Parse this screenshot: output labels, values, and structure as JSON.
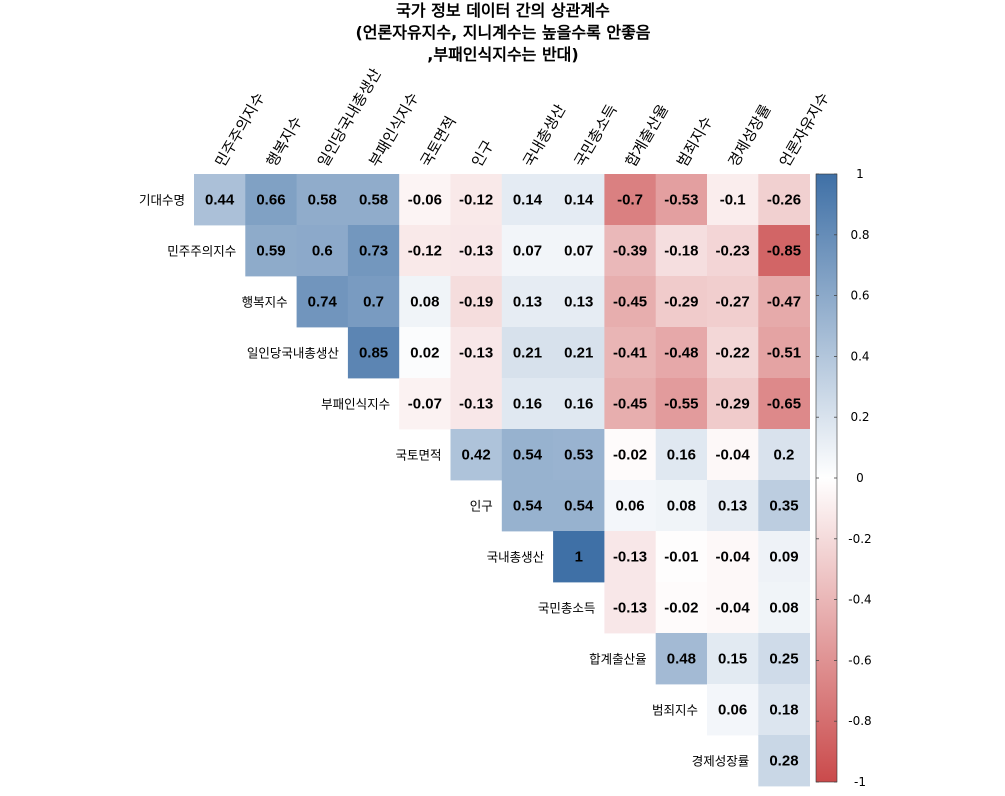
{
  "chart_data": {
    "type": "heatmap",
    "title_lines": [
      "국가 정보 데이터 간의 상관계수",
      "(언론자유지수, 지니계수는 높을수록 안좋음",
      ",부패인식지수는 반대)"
    ],
    "row_labels": [
      "기대수명",
      "민주주의지수",
      "행복지수",
      "일인당국내총생산",
      "부패인식지수",
      "국토면적",
      "인구",
      "국내총생산",
      "국민총소득",
      "합계출산율",
      "범죄지수",
      "경제성장률"
    ],
    "col_labels": [
      "민주주의지수",
      "행복지수",
      "일인당국내총생산",
      "부패인식지수",
      "국토면적",
      "인구",
      "국내총생산",
      "국민총소득",
      "합계출산율",
      "범죄지수",
      "경제성장률",
      "언론자유지수"
    ],
    "values": [
      [
        0.44,
        0.66,
        0.58,
        0.58,
        -0.06,
        -0.12,
        0.14,
        0.14,
        -0.7,
        -0.53,
        -0.1,
        -0.26
      ],
      [
        null,
        0.59,
        0.6,
        0.73,
        -0.12,
        -0.13,
        0.07,
        0.07,
        -0.39,
        -0.18,
        -0.23,
        -0.85
      ],
      [
        null,
        null,
        0.74,
        0.7,
        0.08,
        -0.19,
        0.13,
        0.13,
        -0.45,
        -0.29,
        -0.27,
        -0.47
      ],
      [
        null,
        null,
        null,
        0.85,
        0.02,
        -0.13,
        0.21,
        0.21,
        -0.41,
        -0.48,
        -0.22,
        -0.51
      ],
      [
        null,
        null,
        null,
        null,
        -0.07,
        -0.13,
        0.16,
        0.16,
        -0.45,
        -0.55,
        -0.29,
        -0.65
      ],
      [
        null,
        null,
        null,
        null,
        null,
        0.42,
        0.54,
        0.53,
        -0.02,
        0.16,
        -0.04,
        0.2
      ],
      [
        null,
        null,
        null,
        null,
        null,
        null,
        0.54,
        0.54,
        0.06,
        0.08,
        0.13,
        0.35
      ],
      [
        null,
        null,
        null,
        null,
        null,
        null,
        null,
        1,
        -0.13,
        -0.01,
        -0.04,
        0.09
      ],
      [
        null,
        null,
        null,
        null,
        null,
        null,
        null,
        null,
        -0.13,
        -0.02,
        -0.04,
        0.08
      ],
      [
        null,
        null,
        null,
        null,
        null,
        null,
        null,
        null,
        null,
        0.48,
        0.15,
        0.25
      ],
      [
        null,
        null,
        null,
        null,
        null,
        null,
        null,
        null,
        null,
        null,
        0.06,
        0.18
      ],
      [
        null,
        null,
        null,
        null,
        null,
        null,
        null,
        null,
        null,
        null,
        null,
        0.28
      ]
    ],
    "value_labels": [
      [
        "0.44",
        "0.66",
        "0.58",
        "0.58",
        "-0.06",
        "-0.12",
        "0.14",
        "0.14",
        "-0.7",
        "-0.53",
        "-0.1",
        "-0.26"
      ],
      [
        null,
        "0.59",
        "0.6",
        "0.73",
        "-0.12",
        "-0.13",
        "0.07",
        "0.07",
        "-0.39",
        "-0.18",
        "-0.23",
        "-0.85"
      ],
      [
        null,
        null,
        "0.74",
        "0.7",
        "0.08",
        "-0.19",
        "0.13",
        "0.13",
        "-0.45",
        "-0.29",
        "-0.27",
        "-0.47"
      ],
      [
        null,
        null,
        null,
        "0.85",
        "0.02",
        "-0.13",
        "0.21",
        "0.21",
        "-0.41",
        "-0.48",
        "-0.22",
        "-0.51"
      ],
      [
        null,
        null,
        null,
        null,
        "-0.07",
        "-0.13",
        "0.16",
        "0.16",
        "-0.45",
        "-0.55",
        "-0.29",
        "-0.65"
      ],
      [
        null,
        null,
        null,
        null,
        null,
        "0.42",
        "0.54",
        "0.53",
        "-0.02",
        "0.16",
        "-0.04",
        "0.2"
      ],
      [
        null,
        null,
        null,
        null,
        null,
        null,
        "0.54",
        "0.54",
        "0.06",
        "0.08",
        "0.13",
        "0.35"
      ],
      [
        null,
        null,
        null,
        null,
        null,
        null,
        null,
        "1",
        "-0.13",
        "-0.01",
        "-0.04",
        "0.09"
      ],
      [
        null,
        null,
        null,
        null,
        null,
        null,
        null,
        null,
        "-0.13",
        "-0.02",
        "-0.04",
        "0.08"
      ],
      [
        null,
        null,
        null,
        null,
        null,
        null,
        null,
        null,
        null,
        "0.48",
        "0.15",
        "0.25"
      ],
      [
        null,
        null,
        null,
        null,
        null,
        null,
        null,
        null,
        null,
        null,
        "0.06",
        "0.18"
      ],
      [
        null,
        null,
        null,
        null,
        null,
        null,
        null,
        null,
        null,
        null,
        null,
        "0.28"
      ]
    ],
    "color_scale": {
      "min": -1,
      "max": 1,
      "low_color": "#CA4A4B",
      "mid_color": "#FFFFFF",
      "high_color": "#3F70A6",
      "ticks": [
        1,
        0.8,
        0.6,
        0.4,
        0.2,
        0,
        -0.2,
        -0.4,
        -0.6,
        -0.8,
        -1
      ],
      "tick_labels": [
        "1",
        "0.8",
        "0.6",
        "0.4",
        "0.2",
        "0",
        "-0.2",
        "-0.4",
        "-0.6",
        "-0.8",
        "-1"
      ]
    },
    "legend_position": "right",
    "grid": false
  }
}
